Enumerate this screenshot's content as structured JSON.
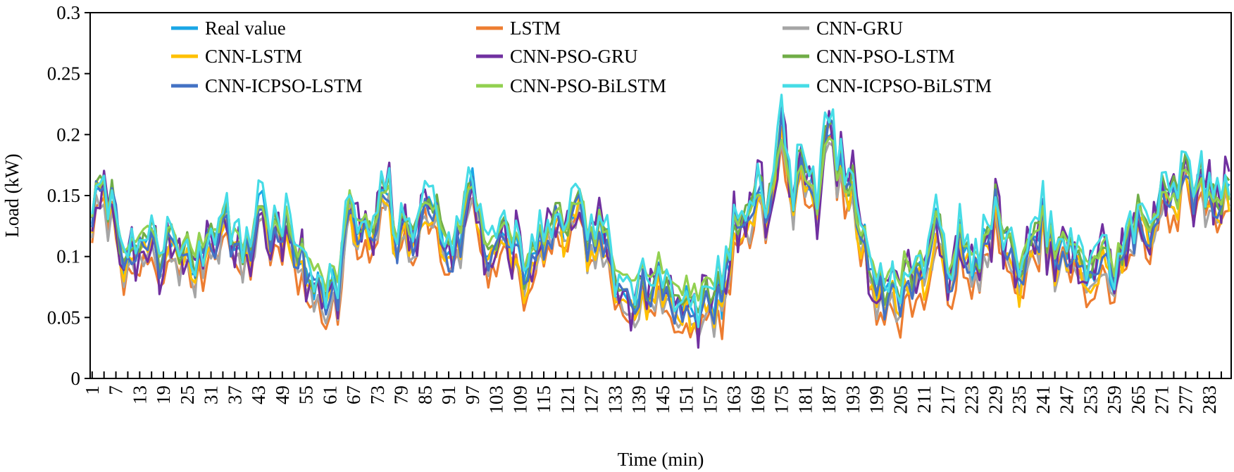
{
  "chart_data": {
    "type": "line",
    "title": "",
    "xlabel": "Time (min)",
    "ylabel": "Load (kW)",
    "x_start": 1,
    "x_end": 288,
    "x_tick_step": 6,
    "x_tick_labels": [
      "1",
      "7",
      "13",
      "19",
      "25",
      "31",
      "37",
      "43",
      "49",
      "55",
      "61",
      "67",
      "73",
      "79",
      "85",
      "91",
      "97",
      "103",
      "109",
      "115",
      "121",
      "127",
      "133",
      "139",
      "145",
      "151",
      "157",
      "163",
      "169",
      "175",
      "181",
      "187",
      "193",
      "199",
      "205",
      "211",
      "217",
      "223",
      "229",
      "235",
      "241",
      "247",
      "253",
      "259",
      "265",
      "271",
      "277",
      "283"
    ],
    "ylim": [
      0,
      0.3
    ],
    "y_ticks": [
      0,
      0.05,
      0.1,
      0.15,
      0.2,
      0.25,
      0.3
    ],
    "y_tick_labels": [
      "0",
      "0.05",
      "0.1",
      "0.15",
      "0.2",
      "0.25",
      "0.3"
    ],
    "grid": false,
    "legend_position": "top, inside plot, 3 columns",
    "base_profile_knots": [
      [
        1,
        0.14
      ],
      [
        3,
        0.155
      ],
      [
        7,
        0.14
      ],
      [
        10,
        0.085
      ],
      [
        13,
        0.11
      ],
      [
        16,
        0.112
      ],
      [
        18,
        0.09
      ],
      [
        21,
        0.12
      ],
      [
        24,
        0.1
      ],
      [
        27,
        0.095
      ],
      [
        31,
        0.12
      ],
      [
        35,
        0.135
      ],
      [
        38,
        0.1
      ],
      [
        41,
        0.11
      ],
      [
        43,
        0.145
      ],
      [
        47,
        0.12
      ],
      [
        51,
        0.12
      ],
      [
        55,
        0.082
      ],
      [
        58,
        0.085
      ],
      [
        61,
        0.07
      ],
      [
        63,
        0.078
      ],
      [
        66,
        0.14
      ],
      [
        68,
        0.125
      ],
      [
        71,
        0.115
      ],
      [
        73,
        0.12
      ],
      [
        75,
        0.16
      ],
      [
        78,
        0.115
      ],
      [
        81,
        0.125
      ],
      [
        84,
        0.128
      ],
      [
        86,
        0.148
      ],
      [
        88,
        0.13
      ],
      [
        91,
        0.105
      ],
      [
        94,
        0.12
      ],
      [
        97,
        0.165
      ],
      [
        100,
        0.11
      ],
      [
        104,
        0.11
      ],
      [
        108,
        0.11
      ],
      [
        111,
        0.08
      ],
      [
        114,
        0.11
      ],
      [
        118,
        0.12
      ],
      [
        121,
        0.128
      ],
      [
        124,
        0.135
      ],
      [
        127,
        0.11
      ],
      [
        130,
        0.12
      ],
      [
        133,
        0.065
      ],
      [
        136,
        0.075
      ],
      [
        139,
        0.08
      ],
      [
        142,
        0.075
      ],
      [
        145,
        0.08
      ],
      [
        148,
        0.06
      ],
      [
        151,
        0.065
      ],
      [
        154,
        0.055
      ],
      [
        157,
        0.065
      ],
      [
        160,
        0.07
      ],
      [
        163,
        0.12
      ],
      [
        166,
        0.13
      ],
      [
        170,
        0.16
      ],
      [
        172,
        0.14
      ],
      [
        175,
        0.205
      ],
      [
        178,
        0.15
      ],
      [
        181,
        0.18
      ],
      [
        184,
        0.15
      ],
      [
        187,
        0.21
      ],
      [
        190,
        0.17
      ],
      [
        193,
        0.15
      ],
      [
        196,
        0.11
      ],
      [
        199,
        0.08
      ],
      [
        202,
        0.068
      ],
      [
        205,
        0.07
      ],
      [
        208,
        0.09
      ],
      [
        211,
        0.085
      ],
      [
        214,
        0.12
      ],
      [
        217,
        0.09
      ],
      [
        220,
        0.11
      ],
      [
        223,
        0.082
      ],
      [
        226,
        0.11
      ],
      [
        229,
        0.14
      ],
      [
        232,
        0.1
      ],
      [
        235,
        0.09
      ],
      [
        238,
        0.1
      ],
      [
        241,
        0.13
      ],
      [
        244,
        0.1
      ],
      [
        247,
        0.105
      ],
      [
        250,
        0.09
      ],
      [
        253,
        0.088
      ],
      [
        256,
        0.1
      ],
      [
        259,
        0.085
      ],
      [
        262,
        0.11
      ],
      [
        265,
        0.13
      ],
      [
        268,
        0.12
      ],
      [
        271,
        0.16
      ],
      [
        274,
        0.15
      ],
      [
        277,
        0.165
      ],
      [
        280,
        0.16
      ],
      [
        283,
        0.15
      ],
      [
        286,
        0.15
      ],
      [
        288,
        0.155
      ]
    ],
    "series": [
      {
        "name": "Real value",
        "color": "#1aa6e6",
        "offset": 0.0,
        "scale": 1.0,
        "noise": 0.01,
        "seed": 11
      },
      {
        "name": "LSTM",
        "color": "#ed7d31",
        "offset": -0.016,
        "scale": 1.0,
        "noise": 0.01,
        "seed": 23
      },
      {
        "name": "CNN-GRU",
        "color": "#a5a5a5",
        "offset": -0.012,
        "scale": 1.0,
        "noise": 0.01,
        "seed": 37
      },
      {
        "name": "CNN-LSTM",
        "color": "#ffc000",
        "offset": -0.008,
        "scale": 1.0,
        "noise": 0.01,
        "seed": 41
      },
      {
        "name": "CNN-PSO-GRU",
        "color": "#7030a0",
        "offset": 0.0,
        "scale": 1.0,
        "noise": 0.024,
        "seed": 53
      },
      {
        "name": "CNN-PSO-LSTM",
        "color": "#70ad47",
        "offset": 0.004,
        "scale": 1.0,
        "noise": 0.01,
        "seed": 67
      },
      {
        "name": "CNN-ICPSO-LSTM",
        "color": "#4472c4",
        "offset": -0.003,
        "scale": 1.0,
        "noise": 0.011,
        "seed": 71
      },
      {
        "name": "CNN-PSO-BiLSTM",
        "color": "#92d050",
        "offset": 0.006,
        "scale": 0.8,
        "noise": 0.005,
        "seed": 83
      },
      {
        "name": "CNN-ICPSO-BiLSTM",
        "color": "#46dce6",
        "offset": 0.008,
        "scale": 1.0,
        "noise": 0.012,
        "seed": 97
      }
    ]
  }
}
